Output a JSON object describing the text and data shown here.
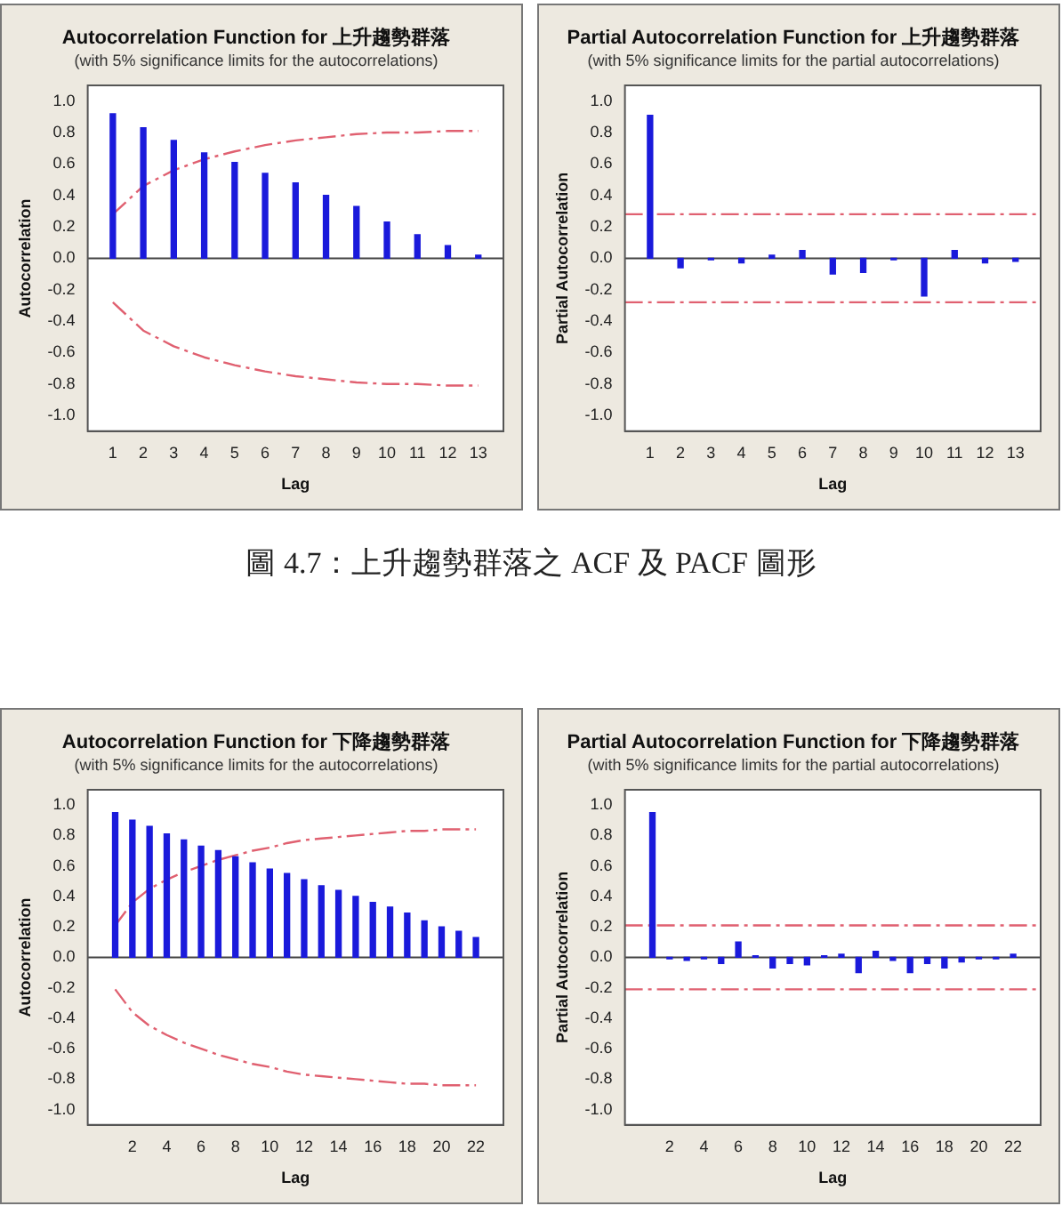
{
  "chart_data": [
    {
      "type": "bar",
      "title": "Autocorrelation Function for 上升趨勢群落",
      "subtitle": "(with 5% significance limits for the autocorrelations)",
      "xlabel": "Lag",
      "ylabel": "Autocorrelation",
      "x": [
        1,
        2,
        3,
        4,
        5,
        6,
        7,
        8,
        9,
        10,
        11,
        12,
        13
      ],
      "series": [
        {
          "color": "#1a1adb",
          "values": [
            0.92,
            0.83,
            0.75,
            0.67,
            0.61,
            0.54,
            0.48,
            0.4,
            0.33,
            0.23,
            0.15,
            0.08,
            0.02
          ]
        },
        {
          "type": "line",
          "color": "#e06070",
          "line_style": "dashed",
          "values": [
            0.28,
            0.46,
            0.56,
            0.63,
            0.68,
            0.72,
            0.75,
            0.77,
            0.79,
            0.8,
            0.8,
            0.81,
            0.81
          ]
        },
        {
          "type": "line",
          "color": "#e06070",
          "line_style": "dashed",
          "values": [
            -0.28,
            -0.46,
            -0.56,
            -0.63,
            -0.68,
            -0.72,
            -0.75,
            -0.77,
            -0.79,
            -0.8,
            -0.8,
            -0.81,
            -0.81
          ]
        }
      ],
      "marker": "none",
      "xlim": [
        0.7,
        13.3
      ],
      "xticks": [
        1,
        2,
        3,
        4,
        5,
        6,
        7,
        8,
        9,
        10,
        11,
        12,
        13
      ],
      "ylim": [
        -1.1,
        1.1
      ],
      "yticks": [
        {
          "value": -1,
          "label": "-1.0"
        },
        {
          "value": -0.8,
          "label": "-0.8"
        },
        {
          "value": -0.6,
          "label": "-0.6"
        },
        {
          "value": -0.4,
          "label": "-0.4"
        },
        {
          "value": -0.2,
          "label": "-0.2"
        },
        {
          "value": 0,
          "label": "0.0"
        },
        {
          "value": 0.2,
          "label": "0.2"
        },
        {
          "value": 0.4,
          "label": "0.4"
        },
        {
          "value": 0.6,
          "label": "0.6"
        },
        {
          "value": 0.8,
          "label": "0.8"
        },
        {
          "value": 1,
          "label": "1.0"
        }
      ],
      "annotations": [
        "圖 4.7：上升趨勢群落之 ACF 及 PACF 圖形"
      ]
    },
    {
      "type": "bar",
      "title": "Partial Autocorrelation Function for 上升趨勢群落",
      "subtitle": "(with 5% significance limits for the partial autocorrelations)",
      "xlabel": "Lag",
      "ylabel": "Partial Autocorrelation",
      "x": [
        1,
        2,
        3,
        4,
        5,
        6,
        7,
        8,
        9,
        10,
        11,
        12,
        13
      ],
      "series": [
        {
          "color": "#1a1adb",
          "values": [
            0.91,
            -0.06,
            -0.01,
            -0.03,
            0.02,
            0.05,
            -0.1,
            -0.09,
            -0.01,
            -0.24,
            0.05,
            -0.03,
            -0.02
          ]
        }
      ],
      "ref_lines": [
        {
          "axis": "y",
          "value": 0.28,
          "color": "#e06070",
          "line_style": "dashed"
        },
        {
          "axis": "y",
          "value": -0.28,
          "color": "#e06070",
          "line_style": "dashed"
        }
      ],
      "xlim": [
        0.7,
        13.3
      ],
      "xticks": [
        1,
        2,
        3,
        4,
        5,
        6,
        7,
        8,
        9,
        10,
        11,
        12,
        13
      ],
      "ylim": [
        -1.1,
        1.1
      ],
      "yticks": [
        {
          "value": -1,
          "label": "-1.0"
        },
        {
          "value": -0.8,
          "label": "-0.8"
        },
        {
          "value": -0.6,
          "label": "-0.6"
        },
        {
          "value": -0.4,
          "label": "-0.4"
        },
        {
          "value": -0.2,
          "label": "-0.2"
        },
        {
          "value": 0,
          "label": "0.0"
        },
        {
          "value": 0.2,
          "label": "0.2"
        },
        {
          "value": 0.4,
          "label": "0.4"
        },
        {
          "value": 0.6,
          "label": "0.6"
        },
        {
          "value": 0.8,
          "label": "0.8"
        },
        {
          "value": 1,
          "label": "1.0"
        }
      ]
    },
    {
      "type": "bar",
      "title": "Autocorrelation Function for 下降趨勢群落",
      "subtitle": "(with 5% significance limits for the autocorrelations)",
      "xlabel": "Lag",
      "ylabel": "Autocorrelation",
      "x": [
        1,
        2,
        3,
        4,
        5,
        6,
        7,
        8,
        9,
        10,
        11,
        12,
        13,
        14,
        15,
        16,
        17,
        18,
        19,
        20,
        21,
        22
      ],
      "series": [
        {
          "color": "#1a1adb",
          "values": [
            0.95,
            0.9,
            0.86,
            0.81,
            0.77,
            0.73,
            0.7,
            0.66,
            0.62,
            0.58,
            0.55,
            0.51,
            0.47,
            0.44,
            0.4,
            0.36,
            0.33,
            0.29,
            0.24,
            0.2,
            0.17,
            0.13
          ]
        },
        {
          "type": "line",
          "color": "#e06070",
          "line_style": "dashed",
          "values": [
            0.21,
            0.36,
            0.45,
            0.51,
            0.56,
            0.6,
            0.64,
            0.67,
            0.7,
            0.72,
            0.75,
            0.77,
            0.78,
            0.79,
            0.8,
            0.81,
            0.82,
            0.83,
            0.83,
            0.84,
            0.84,
            0.84
          ]
        },
        {
          "type": "line",
          "color": "#e06070",
          "line_style": "dashed",
          "values": [
            -0.21,
            -0.36,
            -0.45,
            -0.51,
            -0.56,
            -0.6,
            -0.64,
            -0.67,
            -0.7,
            -0.72,
            -0.75,
            -0.77,
            -0.78,
            -0.79,
            -0.8,
            -0.81,
            -0.82,
            -0.83,
            -0.83,
            -0.84,
            -0.84,
            -0.84
          ]
        }
      ],
      "marker": "none",
      "xlim": [
        0.5,
        22.5
      ],
      "xticks": [
        2,
        4,
        6,
        8,
        10,
        12,
        14,
        16,
        18,
        20,
        22
      ],
      "ylim": [
        -1.1,
        1.1
      ],
      "yticks": [
        {
          "value": -1,
          "label": "-1.0"
        },
        {
          "value": -0.8,
          "label": "-0.8"
        },
        {
          "value": -0.6,
          "label": "-0.6"
        },
        {
          "value": -0.4,
          "label": "-0.4"
        },
        {
          "value": -0.2,
          "label": "-0.2"
        },
        {
          "value": 0,
          "label": "0.0"
        },
        {
          "value": 0.2,
          "label": "0.2"
        },
        {
          "value": 0.4,
          "label": "0.4"
        },
        {
          "value": 0.6,
          "label": "0.6"
        },
        {
          "value": 0.8,
          "label": "0.8"
        },
        {
          "value": 1,
          "label": "1.0"
        }
      ]
    },
    {
      "type": "bar",
      "title": "Partial Autocorrelation Function for 下降趨勢群落",
      "subtitle": "(with 5% significance limits for the partial autocorrelations)",
      "xlabel": "Lag",
      "ylabel": "Partial Autocorrelation",
      "x": [
        1,
        2,
        3,
        4,
        5,
        6,
        7,
        8,
        9,
        10,
        11,
        12,
        13,
        14,
        15,
        16,
        17,
        18,
        19,
        20,
        21,
        22
      ],
      "series": [
        {
          "color": "#1a1adb",
          "values": [
            0.95,
            -0.01,
            -0.02,
            -0.01,
            -0.04,
            0.1,
            0.01,
            -0.07,
            -0.04,
            -0.05,
            0.01,
            0.02,
            -0.1,
            0.04,
            -0.02,
            -0.1,
            -0.04,
            -0.07,
            -0.03,
            -0.01,
            -0.01,
            0.02
          ]
        }
      ],
      "ref_lines": [
        {
          "axis": "y",
          "value": 0.21,
          "color": "#e06070",
          "line_style": "dashed"
        },
        {
          "axis": "y",
          "value": -0.21,
          "color": "#e06070",
          "line_style": "dashed"
        }
      ],
      "xlim": [
        0.5,
        22.5
      ],
      "xticks": [
        2,
        4,
        6,
        8,
        10,
        12,
        14,
        16,
        18,
        20,
        22
      ],
      "ylim": [
        -1.1,
        1.1
      ],
      "yticks": [
        {
          "value": -1,
          "label": "-1.0"
        },
        {
          "value": -0.8,
          "label": "-0.8"
        },
        {
          "value": -0.6,
          "label": "-0.6"
        },
        {
          "value": -0.4,
          "label": "-0.4"
        },
        {
          "value": -0.2,
          "label": "-0.2"
        },
        {
          "value": 0,
          "label": "0.0"
        },
        {
          "value": 0.2,
          "label": "0.2"
        },
        {
          "value": 0.4,
          "label": "0.4"
        },
        {
          "value": 0.6,
          "label": "0.6"
        },
        {
          "value": 0.8,
          "label": "0.8"
        },
        {
          "value": 1,
          "label": "1.0"
        }
      ]
    }
  ]
}
